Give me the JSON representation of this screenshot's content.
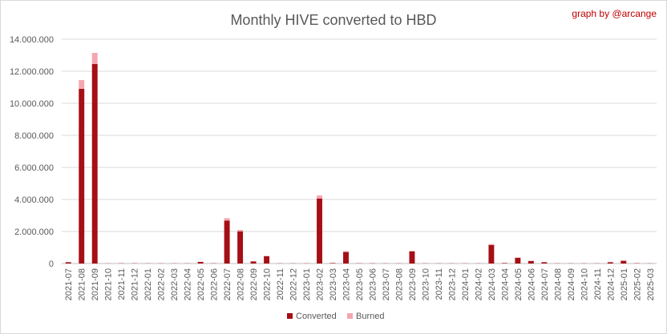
{
  "chart_data": {
    "type": "bar",
    "stacked": true,
    "title": "Monthly HIVE converted to HBD",
    "credit": "graph by @arcange",
    "xlabel": "",
    "ylabel": "",
    "ylim": [
      0,
      14000000
    ],
    "yticks": [
      {
        "value": 0,
        "label": "0"
      },
      {
        "value": 2000000,
        "label": "2.000.000"
      },
      {
        "value": 4000000,
        "label": "4.000.000"
      },
      {
        "value": 6000000,
        "label": "6.000.000"
      },
      {
        "value": 8000000,
        "label": "8.000.000"
      },
      {
        "value": 10000000,
        "label": "10.000.000"
      },
      {
        "value": 12000000,
        "label": "12.000.000"
      },
      {
        "value": 14000000,
        "label": "14.000.000"
      }
    ],
    "grid": true,
    "legend_position": "bottom",
    "categories": [
      "2021-07",
      "2021-08",
      "2021-09",
      "2021-10",
      "2021-11",
      "2021-12",
      "2022-01",
      "2022-02",
      "2022-03",
      "2022-04",
      "2022-05",
      "2022-06",
      "2022-07",
      "2022-08",
      "2022-09",
      "2022-10",
      "2022-11",
      "2022-12",
      "2023-01",
      "2023-02",
      "2023-03",
      "2023-04",
      "2023-05",
      "2023-06",
      "2023-07",
      "2023-08",
      "2023-09",
      "2023-10",
      "2023-11",
      "2023-12",
      "2024-01",
      "2024-02",
      "2024-03",
      "2024-04",
      "2024-05",
      "2024-06",
      "2024-07",
      "2024-08",
      "2024-09",
      "2024-10",
      "2024-11",
      "2024-12",
      "2025-01",
      "2025-02",
      "2025-03"
    ],
    "series": [
      {
        "name": "Converted",
        "color": "#a50f15",
        "values": [
          80000,
          10900000,
          12450000,
          10000,
          15000,
          15000,
          10000,
          10000,
          10000,
          10000,
          100000,
          15000,
          2680000,
          2000000,
          130000,
          450000,
          10000,
          10000,
          10000,
          4050000,
          30000,
          720000,
          15000,
          15000,
          10000,
          10000,
          750000,
          10000,
          10000,
          10000,
          10000,
          10000,
          1150000,
          30000,
          350000,
          160000,
          80000,
          10000,
          10000,
          10000,
          10000,
          80000,
          170000,
          20000,
          10000
        ]
      },
      {
        "name": "Burned",
        "color": "#f4a6b0",
        "values": [
          5000,
          550000,
          700000,
          10000,
          5000,
          5000,
          5000,
          5000,
          5000,
          5000,
          10000,
          5000,
          150000,
          100000,
          10000,
          30000,
          5000,
          5000,
          5000,
          200000,
          5000,
          50000,
          5000,
          5000,
          5000,
          5000,
          40000,
          5000,
          5000,
          5000,
          5000,
          5000,
          70000,
          5000,
          30000,
          15000,
          10000,
          5000,
          5000,
          5000,
          5000,
          10000,
          15000,
          5000,
          5000
        ]
      }
    ]
  }
}
